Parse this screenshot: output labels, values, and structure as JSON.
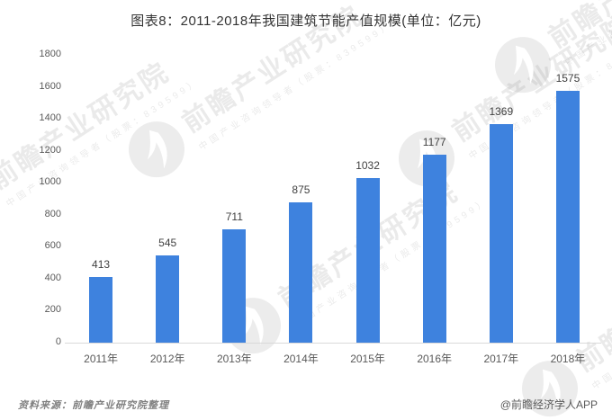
{
  "title": "图表8：2011-2018年我国建筑节能产值规模(单位：亿元)",
  "chart_data": {
    "type": "bar",
    "categories": [
      "2011年",
      "2012年",
      "2013年",
      "2014年",
      "2015年",
      "2016年",
      "2017年",
      "2018年"
    ],
    "values": [
      413,
      545,
      711,
      875,
      1032,
      1177,
      1369,
      1575
    ],
    "title": "图表8：2011-2018年我国建筑节能产值规模(单位：亿元)",
    "xlabel": "",
    "ylabel": "",
    "ylim": [
      0,
      1800
    ],
    "ytick_step": 200,
    "value_labels": true,
    "grid": false,
    "legend": "none"
  },
  "colors": {
    "bar": "#3E82DE",
    "axis_line": "#d9d9d9",
    "tick_label": "#595959",
    "value_label": "#404040",
    "title": "#333333"
  },
  "footer": {
    "source": "资料来源：前瞻产业研究院整理",
    "credit": "@前瞻经济学人APP"
  },
  "watermark": {
    "big_text": "前瞻产业研究院",
    "small_text": "中国产业咨询领导者（股票：839599）",
    "logo": "qianzhan-logo"
  }
}
